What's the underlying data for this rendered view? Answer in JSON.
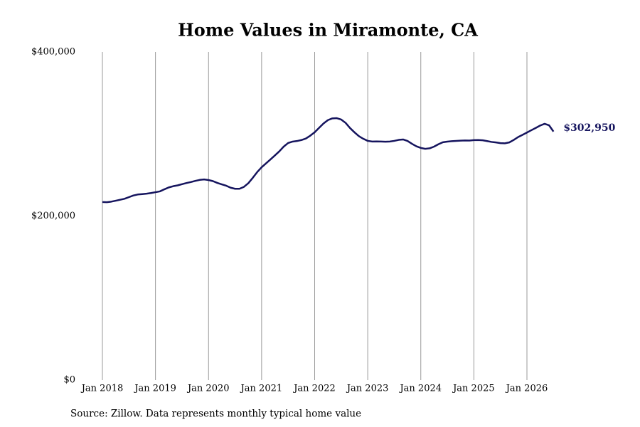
{
  "chart_data": {
    "type": "line",
    "title": "Home Values in Miramonte, CA",
    "source": "Source: Zillow. Data represents monthly typical home value",
    "x": [
      "2018-01",
      "2018-02",
      "2018-03",
      "2018-04",
      "2018-05",
      "2018-06",
      "2018-07",
      "2018-08",
      "2018-09",
      "2018-10",
      "2018-11",
      "2018-12",
      "2019-01",
      "2019-02",
      "2019-03",
      "2019-04",
      "2019-05",
      "2019-06",
      "2019-07",
      "2019-08",
      "2019-09",
      "2019-10",
      "2019-11",
      "2019-12",
      "2020-01",
      "2020-02",
      "2020-03",
      "2020-04",
      "2020-05",
      "2020-06",
      "2020-07",
      "2020-08",
      "2020-09",
      "2020-10",
      "2020-11",
      "2020-12",
      "2021-01",
      "2021-02",
      "2021-03",
      "2021-04",
      "2021-05",
      "2021-06",
      "2021-07",
      "2021-08",
      "2021-09",
      "2021-10",
      "2021-11",
      "2021-12",
      "2022-01",
      "2022-02",
      "2022-03",
      "2022-04",
      "2022-05",
      "2022-06",
      "2022-07",
      "2022-08",
      "2022-09",
      "2022-10",
      "2022-11",
      "2022-12",
      "2023-01",
      "2023-02",
      "2023-03",
      "2023-04",
      "2023-05",
      "2023-06",
      "2023-07",
      "2023-08",
      "2023-09",
      "2023-10",
      "2023-11",
      "2023-12",
      "2024-01",
      "2024-02",
      "2024-03",
      "2024-04",
      "2024-05",
      "2024-06",
      "2024-07",
      "2024-08",
      "2024-09",
      "2024-10",
      "2024-11",
      "2024-12",
      "2025-01",
      "2025-02",
      "2025-03",
      "2025-04",
      "2025-05",
      "2025-06",
      "2025-07",
      "2025-08",
      "2025-09",
      "2025-10",
      "2025-11",
      "2025-12",
      "2026-01",
      "2026-02",
      "2026-03",
      "2026-04",
      "2026-05",
      "2026-06",
      "2026-07"
    ],
    "series": [
      {
        "color": "#15145e",
        "values": [
          217000,
          216800,
          217500,
          218600,
          219800,
          221000,
          223000,
          225000,
          226200,
          226700,
          227200,
          228000,
          229000,
          230000,
          232500,
          234800,
          236300,
          237300,
          238800,
          240200,
          241400,
          242800,
          244000,
          244600,
          243800,
          242500,
          240300,
          238600,
          236900,
          234500,
          233200,
          233200,
          235500,
          240000,
          246500,
          253500,
          259400,
          264200,
          268900,
          273800,
          278800,
          284600,
          289000,
          290700,
          291400,
          292600,
          294400,
          297900,
          302100,
          307500,
          312800,
          316900,
          319000,
          319300,
          317600,
          313500,
          307200,
          302000,
          297300,
          294100,
          291600,
          290800,
          290900,
          290800,
          290600,
          290800,
          291600,
          292800,
          293300,
          291500,
          288000,
          285000,
          283000,
          281900,
          282500,
          284600,
          287500,
          289900,
          290700,
          291200,
          291500,
          291900,
          292100,
          292000,
          292500,
          292600,
          292300,
          291300,
          290300,
          289700,
          288800,
          288600,
          289700,
          292700,
          296200,
          298900,
          301700,
          304600,
          307400,
          310300,
          312400,
          310600,
          302950
        ],
        "value_labels": [
          null,
          null,
          null,
          null,
          null,
          null,
          null,
          null,
          null,
          null,
          null,
          null,
          null,
          null,
          null,
          null,
          null,
          null,
          null,
          null,
          null,
          null,
          null,
          null,
          null,
          null,
          null,
          null,
          null,
          null,
          null,
          null,
          null,
          null,
          null,
          null,
          null,
          null,
          null,
          null,
          null,
          null,
          null,
          null,
          null,
          null,
          null,
          null,
          null,
          null,
          null,
          null,
          null,
          null,
          null,
          null,
          null,
          null,
          null,
          null,
          null,
          null,
          null,
          null,
          null,
          null,
          null,
          null,
          null,
          null,
          null,
          null,
          null,
          null,
          null,
          null,
          null,
          null,
          null,
          null,
          null,
          null,
          null,
          null,
          null,
          null,
          null,
          null,
          null,
          null,
          null,
          null,
          null,
          null,
          null,
          null,
          null,
          null,
          null,
          null,
          null,
          null,
          "$302,950"
        ]
      }
    ],
    "xticks": [
      {
        "value": "2018-01",
        "label": "Jan 2018"
      },
      {
        "value": "2019-01",
        "label": "Jan 2019"
      },
      {
        "value": "2020-01",
        "label": "Jan 2020"
      },
      {
        "value": "2021-01",
        "label": "Jan 2021"
      },
      {
        "value": "2022-01",
        "label": "Jan 2022"
      },
      {
        "value": "2023-01",
        "label": "Jan 2023"
      },
      {
        "value": "2024-01",
        "label": "Jan 2024"
      },
      {
        "value": "2025-01",
        "label": "Jan 2025"
      },
      {
        "value": "2026-01",
        "label": "Jan 2026"
      }
    ],
    "ylim": [
      0,
      400000
    ],
    "yticks": [
      {
        "value": 0,
        "label": "$0"
      },
      {
        "value": 200000,
        "label": "$200,000"
      },
      {
        "value": 400000,
        "label": "$400,000"
      }
    ],
    "grid": "x"
  }
}
